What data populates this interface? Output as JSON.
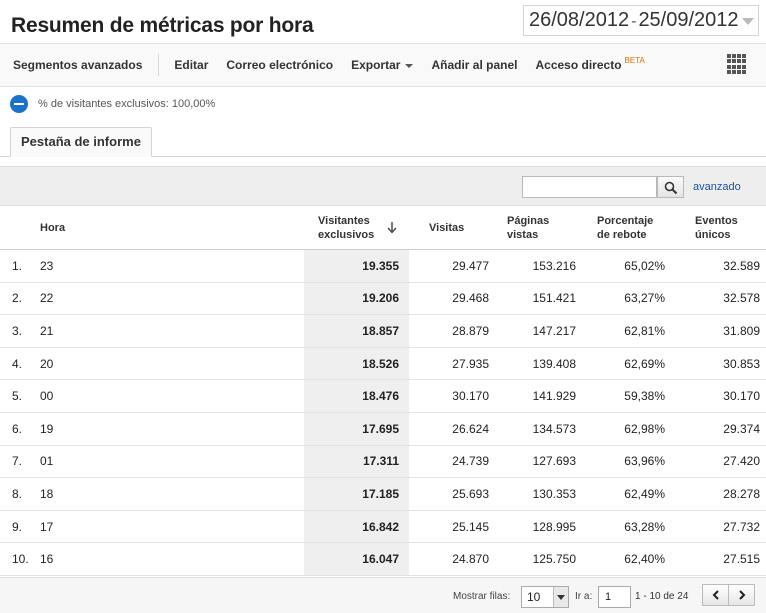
{
  "header": {
    "title": "Resumen de métricas por hora",
    "date_start": "26/08/2012",
    "date_separator": "-",
    "date_end": "25/09/2012"
  },
  "toolbar": {
    "items": [
      "Segmentos avanzados",
      "Editar",
      "Correo electrónico",
      "Exportar",
      "Añadir al panel",
      "Acceso directo"
    ],
    "beta": "BETA"
  },
  "segment": {
    "label": "% de visitantes exclusivos: 100,00%"
  },
  "tab": {
    "label": "Pestaña de informe"
  },
  "search": {
    "placeholder": "",
    "advanced": "avanzado"
  },
  "table": {
    "headers": {
      "hora": "Hora",
      "visitantes_l1": "Visitantes",
      "visitantes_l2": "exclusivos",
      "visitas": "Visitas",
      "paginas_l1": "Páginas",
      "paginas_l2": "vistas",
      "rebote_l1": "Porcentaje",
      "rebote_l2": "de rebote",
      "eventos_l1": "Eventos",
      "eventos_l2": "únicos"
    },
    "rows": [
      {
        "n": "1.",
        "hora": "23",
        "vis": "19.355",
        "visitas": "29.477",
        "pag": "153.216",
        "reb": "65,02%",
        "ev": "32.589"
      },
      {
        "n": "2.",
        "hora": "22",
        "vis": "19.206",
        "visitas": "29.468",
        "pag": "151.421",
        "reb": "63,27%",
        "ev": "32.578"
      },
      {
        "n": "3.",
        "hora": "21",
        "vis": "18.857",
        "visitas": "28.879",
        "pag": "147.217",
        "reb": "62,81%",
        "ev": "31.809"
      },
      {
        "n": "4.",
        "hora": "20",
        "vis": "18.526",
        "visitas": "27.935",
        "pag": "139.408",
        "reb": "62,69%",
        "ev": "30.853"
      },
      {
        "n": "5.",
        "hora": "00",
        "vis": "18.476",
        "visitas": "30.170",
        "pag": "141.929",
        "reb": "59,38%",
        "ev": "30.170"
      },
      {
        "n": "6.",
        "hora": "19",
        "vis": "17.695",
        "visitas": "26.624",
        "pag": "134.573",
        "reb": "62,98%",
        "ev": "29.374"
      },
      {
        "n": "7.",
        "hora": "01",
        "vis": "17.311",
        "visitas": "24.739",
        "pag": "127.693",
        "reb": "63,96%",
        "ev": "27.420"
      },
      {
        "n": "8.",
        "hora": "18",
        "vis": "17.185",
        "visitas": "25.693",
        "pag": "130.353",
        "reb": "62,49%",
        "ev": "28.278"
      },
      {
        "n": "9.",
        "hora": "17",
        "vis": "16.842",
        "visitas": "25.145",
        "pag": "128.995",
        "reb": "63,28%",
        "ev": "27.732"
      },
      {
        "n": "10.",
        "hora": "16",
        "vis": "16.047",
        "visitas": "24.870",
        "pag": "125.750",
        "reb": "62,40%",
        "ev": "27.515"
      }
    ]
  },
  "footer": {
    "rows_label": "Mostrar filas:",
    "rows_value": "10",
    "goto_label": "Ir a:",
    "goto_value": "1",
    "range": "1 - 10 de 24"
  },
  "icons": {
    "segment": "minus-circle-icon",
    "search": "search-icon",
    "sort": "sort-down-icon",
    "grid": "grid-view-icon",
    "prev": "chevron-left-icon",
    "next": "chevron-right-icon"
  },
  "colors": {
    "accent": "#1a73c8",
    "beta": "#e07000",
    "link": "#1155a7"
  }
}
